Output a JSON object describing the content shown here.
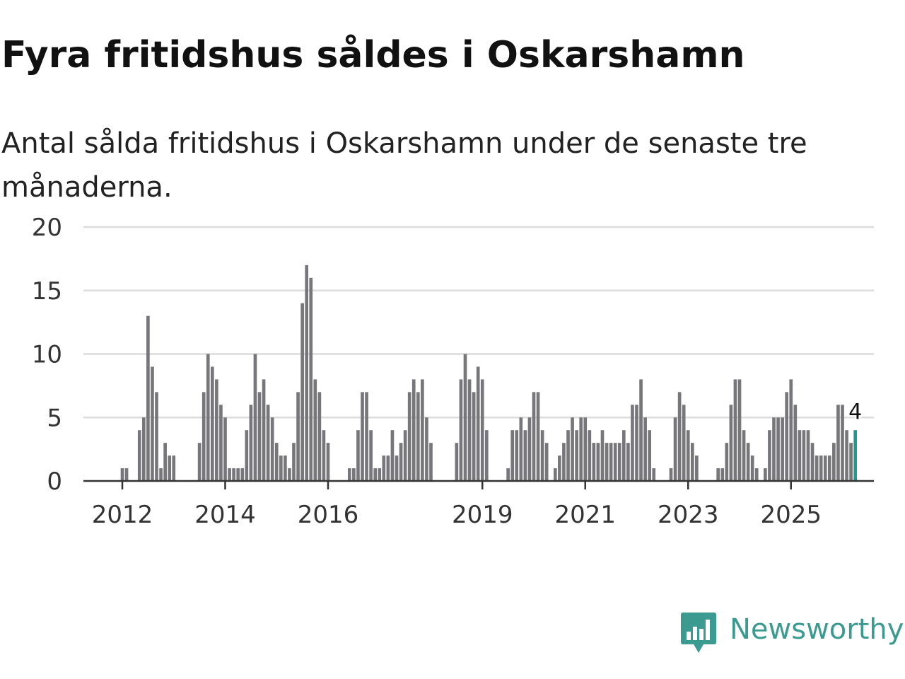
{
  "header": {
    "title": "Fyra fritidshus såldes i Oskarshamn",
    "subtitle": "Antal sålda fritidshus i Oskarshamn under de senaste tre månaderna."
  },
  "chart_data": {
    "type": "bar",
    "title": "Fyra fritidshus såldes i Oskarshamn",
    "subtitle": "Antal sålda fritidshus i Oskarshamn under de senaste tre månaderna.",
    "xlabel": "",
    "ylabel": "",
    "ylim": [
      0,
      20
    ],
    "yticks": [
      "0",
      "5",
      "10",
      "15",
      "20"
    ],
    "grid": true,
    "legend": "none",
    "bar_color": "#77767b",
    "highlight_color": "#21998c",
    "start_year": 2011,
    "start_month": 5,
    "xticks": [
      {
        "year": 2012,
        "label": "2012"
      },
      {
        "year": 2014,
        "label": "2014"
      },
      {
        "year": 2016,
        "label": "2016"
      },
      {
        "year": 2019,
        "label": "2019"
      },
      {
        "year": 2021,
        "label": "2021"
      },
      {
        "year": 2023,
        "label": "2023"
      },
      {
        "year": 2025,
        "label": "2025"
      }
    ],
    "series": [
      {
        "name": "Antal sålda fritidshus (senaste tre månaderna)",
        "values": [
          0,
          0,
          0,
          0,
          0,
          0,
          0,
          0,
          1,
          1,
          0,
          0,
          4,
          5,
          13,
          9,
          7,
          1,
          3,
          2,
          2,
          0,
          0,
          0,
          0,
          0,
          3,
          7,
          10,
          9,
          8,
          6,
          5,
          1,
          1,
          1,
          1,
          4,
          6,
          10,
          7,
          8,
          6,
          5,
          3,
          2,
          2,
          1,
          3,
          7,
          14,
          17,
          16,
          8,
          7,
          4,
          3,
          0,
          0,
          0,
          0,
          1,
          1,
          4,
          7,
          7,
          4,
          1,
          1,
          2,
          2,
          4,
          2,
          3,
          4,
          7,
          8,
          7,
          8,
          5,
          3,
          0,
          0,
          0,
          0,
          0,
          3,
          8,
          10,
          8,
          7,
          9,
          8,
          4,
          0,
          0,
          0,
          0,
          1,
          4,
          4,
          5,
          4,
          5,
          7,
          7,
          4,
          3,
          0,
          1,
          2,
          3,
          4,
          5,
          4,
          5,
          5,
          4,
          3,
          3,
          4,
          3,
          3,
          3,
          3,
          4,
          3,
          6,
          6,
          8,
          5,
          4,
          1,
          0,
          0,
          0,
          1,
          5,
          7,
          6,
          4,
          3,
          2,
          0,
          0,
          0,
          0,
          1,
          1,
          3,
          6,
          8,
          8,
          4,
          3,
          2,
          1,
          0,
          1,
          4,
          5,
          5,
          5,
          7,
          8,
          6,
          4,
          4,
          4,
          3,
          2,
          2,
          2,
          2,
          3,
          6,
          6,
          4,
          3,
          4
        ]
      }
    ],
    "highlight": {
      "value": 4,
      "label": "4"
    }
  },
  "brand": {
    "name": "Newsworthy",
    "color": "#3c9b90"
  }
}
